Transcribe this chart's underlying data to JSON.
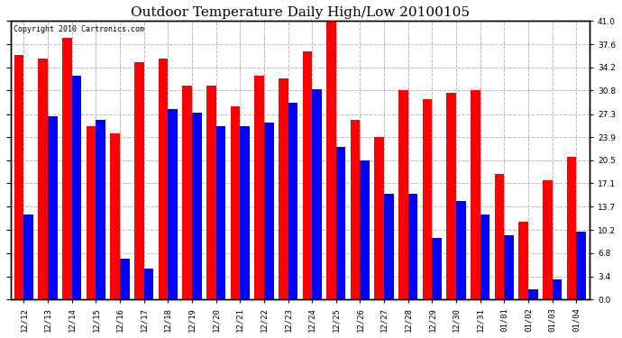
{
  "title": "Outdoor Temperature Daily High/Low 20100105",
  "copyright": "Copyright 2010 Cartronics.com",
  "dates": [
    "12/12",
    "12/13",
    "12/14",
    "12/15",
    "12/16",
    "12/17",
    "12/18",
    "12/19",
    "12/20",
    "12/21",
    "12/22",
    "12/23",
    "12/24",
    "12/25",
    "12/26",
    "12/27",
    "12/28",
    "12/29",
    "12/30",
    "12/31",
    "01/01",
    "01/02",
    "01/03",
    "01/04"
  ],
  "highs": [
    36.0,
    35.5,
    38.5,
    25.5,
    24.5,
    35.0,
    35.5,
    31.5,
    31.5,
    28.5,
    33.0,
    32.5,
    36.5,
    41.0,
    26.5,
    23.9,
    30.8,
    29.5,
    30.5,
    30.8,
    18.5,
    11.5,
    17.5,
    21.0
  ],
  "lows": [
    12.5,
    27.0,
    33.0,
    26.5,
    6.0,
    4.5,
    28.0,
    27.5,
    25.5,
    25.5,
    26.0,
    29.0,
    31.0,
    22.5,
    20.5,
    15.5,
    15.5,
    9.0,
    14.5,
    12.5,
    9.5,
    1.5,
    3.0,
    10.0
  ],
  "high_color": "#ff0000",
  "low_color": "#0000ff",
  "bg_color": "#ffffff",
  "grid_color": "#bbbbbb",
  "yticks": [
    0.0,
    3.4,
    6.8,
    10.2,
    13.7,
    17.1,
    20.5,
    23.9,
    27.3,
    30.8,
    34.2,
    37.6,
    41.0
  ],
  "ylim": [
    0,
    41.0
  ],
  "bar_width": 0.4,
  "title_fontsize": 11,
  "tick_fontsize": 6.5,
  "copyright_fontsize": 6
}
